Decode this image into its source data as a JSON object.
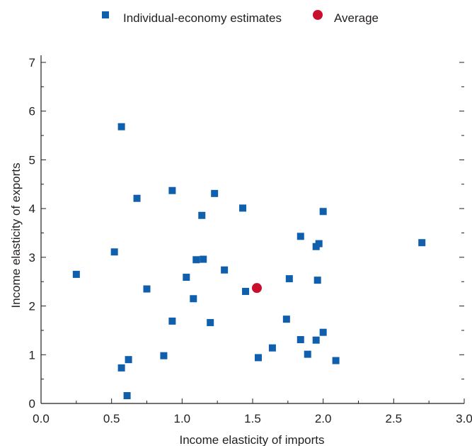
{
  "chart_data": {
    "type": "scatter",
    "xlabel": "Income elasticity of imports",
    "ylabel": "Income elasticity of exports",
    "xlim": [
      0,
      3
    ],
    "ylim": [
      0,
      7
    ],
    "x_ticks": [
      "0.0",
      "0.5",
      "1.0",
      "1.5",
      "2.0",
      "2.5",
      "3.0"
    ],
    "y_ticks": [
      "0",
      "1",
      "2",
      "3",
      "4",
      "5",
      "6",
      "7"
    ],
    "legend_position": "top",
    "grid": false,
    "series": [
      {
        "name": "Individual-economy estimates",
        "color": "#0f5fad",
        "marker": "square",
        "points": [
          [
            0.25,
            2.65
          ],
          [
            0.57,
            5.68
          ],
          [
            0.52,
            3.11
          ],
          [
            0.68,
            4.21
          ],
          [
            0.75,
            2.35
          ],
          [
            0.93,
            4.37
          ],
          [
            0.93,
            1.69
          ],
          [
            0.87,
            0.98
          ],
          [
            0.57,
            0.73
          ],
          [
            0.62,
            0.9
          ],
          [
            0.61,
            0.16
          ],
          [
            1.03,
            2.59
          ],
          [
            1.08,
            2.15
          ],
          [
            1.1,
            2.95
          ],
          [
            1.14,
            3.86
          ],
          [
            1.15,
            2.96
          ],
          [
            1.2,
            1.66
          ],
          [
            1.23,
            4.31
          ],
          [
            1.3,
            2.74
          ],
          [
            1.43,
            4.01
          ],
          [
            1.45,
            2.3
          ],
          [
            1.54,
            0.94
          ],
          [
            1.64,
            1.14
          ],
          [
            1.74,
            1.73
          ],
          [
            1.76,
            2.56
          ],
          [
            1.84,
            3.43
          ],
          [
            1.84,
            1.31
          ],
          [
            1.89,
            1.01
          ],
          [
            1.95,
            1.3
          ],
          [
            1.95,
            3.22
          ],
          [
            1.96,
            2.53
          ],
          [
            1.97,
            3.28
          ],
          [
            2.0,
            3.94
          ],
          [
            2.0,
            1.46
          ],
          [
            2.09,
            0.88
          ],
          [
            2.7,
            3.3
          ]
        ]
      },
      {
        "name": "Average",
        "color": "#c8102e",
        "marker": "circle",
        "points": [
          [
            1.53,
            2.37
          ]
        ]
      }
    ]
  }
}
